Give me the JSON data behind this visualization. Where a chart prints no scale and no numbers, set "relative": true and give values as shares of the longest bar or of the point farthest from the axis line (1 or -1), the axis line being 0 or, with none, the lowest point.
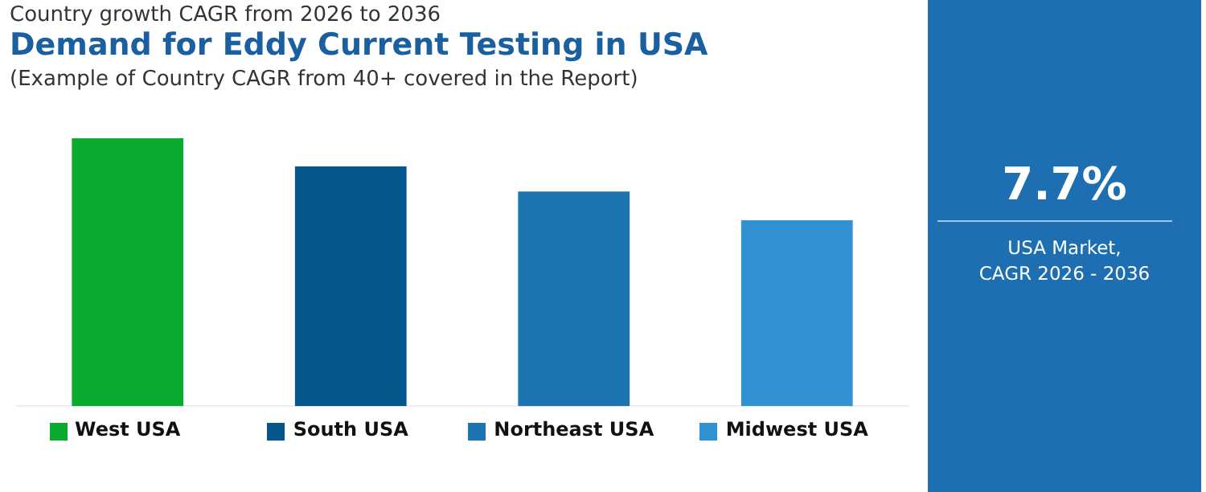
{
  "chart_data": {
    "type": "bar",
    "title": "Demand for Eddy Current Testing in USA",
    "subtitle": "(Example of Country CAGR from 40+ covered in the Report)",
    "annotations": [
      "Country growth CAGR from 2026 to 2036",
      "7.7%",
      "USA Market,\nCAGR 2026 - 2036"
    ],
    "categories": [
      "West USA",
      "South USA",
      "Northeast USA",
      "Midwest USA"
    ],
    "values": [
      1,
      0.895,
      0.801,
      0.694
    ],
    "colors": [
      "#0aab2e",
      "#06568e",
      "#1c75b0",
      "#3191d3"
    ],
    "relative": true
  }
}
